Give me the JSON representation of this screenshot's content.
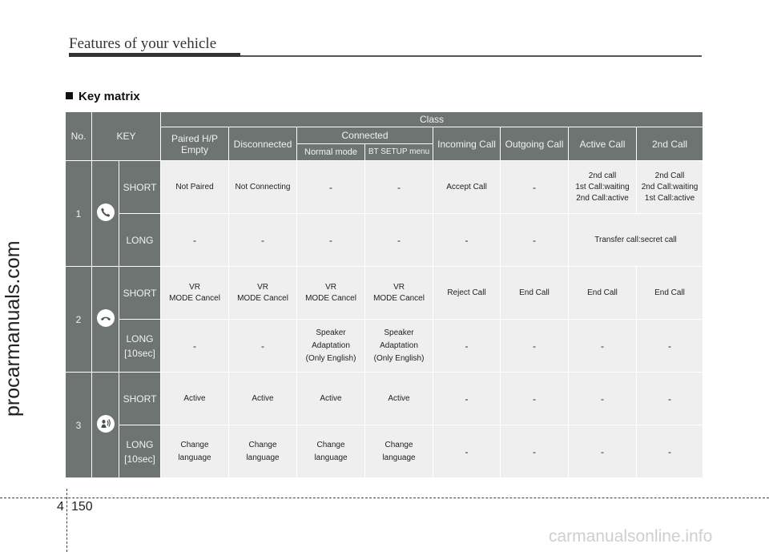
{
  "header": {
    "title": "Features of your vehicle"
  },
  "side_watermark": "procarmanuals.com",
  "bottom_watermark": "carmanualsonline.info",
  "section": {
    "title": "Key matrix"
  },
  "table": {
    "head": {
      "no": "No.",
      "key": "KEY",
      "class": "Class",
      "paired": "Paired H/P Empty",
      "disconnected": "Disconnected",
      "connected": "Connected",
      "normal_mode": "Normal mode",
      "bt_setup": "BT SETUP menu",
      "incoming": "Incoming Call",
      "outgoing": "Outgoing Call",
      "active": "Active Call",
      "second": "2nd Call"
    },
    "rows": [
      {
        "no": "1",
        "icon": "phone-icon",
        "short_label": "SHORT",
        "short": [
          "Not Paired",
          "Not Connecting",
          "-",
          "-",
          "Accept Call",
          "-",
          "2nd call\n1st Call:waiting\n2nd Call:active",
          "2nd Call\n2nd Call:waiting\n1st Call:active"
        ],
        "long_label": "LONG",
        "long": [
          "-",
          "-",
          "-",
          "-",
          "-",
          "-"
        ],
        "long_merged": "Transfer call:secret call"
      },
      {
        "no": "2",
        "icon": "hang-up-icon",
        "short_label": "SHORT",
        "short": [
          "VR\nMODE Cancel",
          "VR\nMODE Cancel",
          "VR\nMODE Cancel",
          "VR\nMODE Cancel",
          "Reject Call",
          "End Call",
          "End Call",
          "End Call"
        ],
        "long_label": "LONG\n[10sec]",
        "long": [
          "-",
          "-",
          "Speaker\nAdaptation\n(Only English)",
          "Speaker\nAdaptation\n(Only English)",
          "-",
          "-",
          "-",
          "-"
        ]
      },
      {
        "no": "3",
        "icon": "voice-recognition-icon",
        "short_label": "SHORT",
        "short": [
          "Active",
          "Active",
          "Active",
          "Active",
          "-",
          "-",
          "-",
          "-"
        ],
        "long_label": "LONG\n[10sec]",
        "long": [
          "Change\nlanguage",
          "Change\nlanguage",
          "Change\nlanguage",
          "Change\nlanguage",
          "-",
          "-",
          "-",
          "-"
        ]
      }
    ]
  },
  "footer": {
    "chapter": "4",
    "page": "150"
  }
}
